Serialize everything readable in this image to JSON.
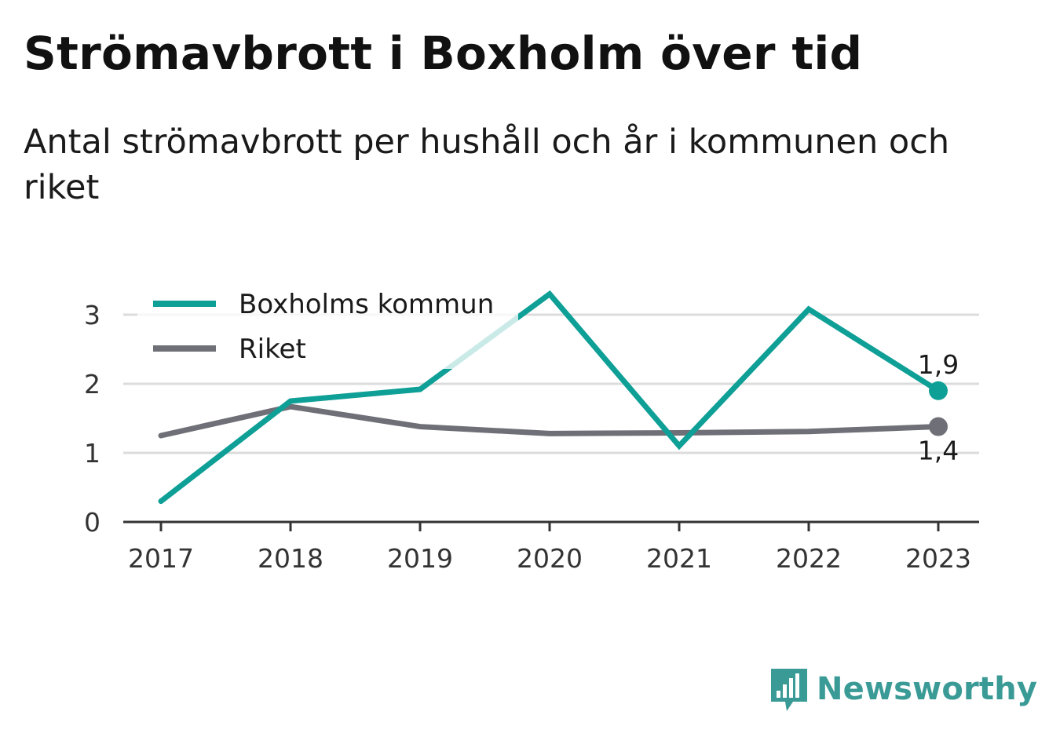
{
  "header": {
    "title": "Strömavbrott i Boxholm över tid",
    "subtitle": "Antal strömavbrott per hushåll och år i kommunen och riket"
  },
  "brand": {
    "name": "Newsworthy",
    "icon": "newsworthy-logo-icon",
    "color": "#3a9a96"
  },
  "chart_data": {
    "type": "line",
    "title": "Strömavbrott i Boxholm över tid",
    "subtitle": "Antal strömavbrott per hushåll och år i kommunen och riket",
    "xlabel": "",
    "ylabel": "",
    "x": [
      "2017",
      "2018",
      "2019",
      "2020",
      "2021",
      "2022",
      "2023"
    ],
    "ylim": [
      0,
      3.3
    ],
    "yticks": [
      0,
      1,
      2,
      3
    ],
    "grid": true,
    "legend_position": "top-left",
    "series": [
      {
        "name": "Boxholms kommun",
        "color": "#0e9f96",
        "values": [
          0.3,
          1.75,
          1.92,
          3.3,
          1.1,
          3.08,
          1.9
        ],
        "end_label": "1,9"
      },
      {
        "name": "Riket",
        "color": "#6f6f77",
        "values": [
          1.25,
          1.67,
          1.38,
          1.28,
          1.29,
          1.31,
          1.38
        ],
        "end_label": "1,4"
      }
    ]
  }
}
